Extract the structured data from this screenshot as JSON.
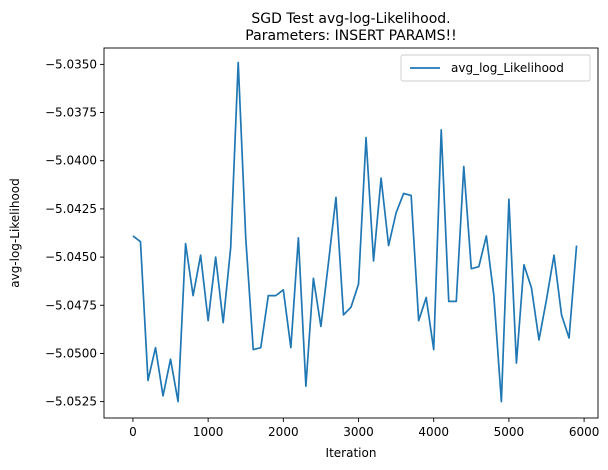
{
  "chart_data": {
    "type": "line",
    "title_line1": "SGD Test avg-log-Likelihood.",
    "title_line2": "Parameters: INSERT PARAMS!!",
    "xlabel": "Iteration",
    "ylabel": "avg-log-Likelihood",
    "xlim": [
      -385,
      6185
    ],
    "ylim": [
      -5.05335,
      -5.03415
    ],
    "x_ticks": [
      0,
      1000,
      2000,
      3000,
      4000,
      5000,
      6000
    ],
    "x_tick_labels": [
      "0",
      "1000",
      "2000",
      "3000",
      "4000",
      "5000",
      "6000"
    ],
    "y_ticks": [
      -5.0525,
      -5.05,
      -5.0475,
      -5.045,
      -5.0425,
      -5.04,
      -5.0375,
      -5.035
    ],
    "y_tick_labels": [
      "−5.0525",
      "−5.0500",
      "−5.0475",
      "−5.0450",
      "−5.0425",
      "−5.0400",
      "−5.0375",
      "−5.0350"
    ],
    "grid": false,
    "legend_position": "top-right",
    "series": [
      {
        "name": "avg_log_Likelihood",
        "color": "#1f77b4",
        "x": [
          0,
          100,
          200,
          300,
          400,
          500,
          600,
          700,
          800,
          900,
          1000,
          1100,
          1200,
          1300,
          1400,
          1500,
          1600,
          1700,
          1800,
          1900,
          2000,
          2100,
          2200,
          2300,
          2400,
          2500,
          2600,
          2700,
          2800,
          2900,
          3000,
          3100,
          3200,
          3300,
          3400,
          3500,
          3600,
          3700,
          3800,
          3900,
          4000,
          4100,
          4200,
          4300,
          4400,
          4500,
          4600,
          4700,
          4800,
          4900,
          5000,
          5100,
          5200,
          5300,
          5400,
          5500,
          5600,
          5700,
          5800,
          5900
        ],
        "y": [
          -5.0439,
          -5.0442,
          -5.0514,
          -5.0497,
          -5.0522,
          -5.0503,
          -5.0525,
          -5.0443,
          -5.047,
          -5.0449,
          -5.0483,
          -5.045,
          -5.0484,
          -5.0445,
          -5.0349,
          -5.044,
          -5.0498,
          -5.0497,
          -5.047,
          -5.047,
          -5.0467,
          -5.0497,
          -5.044,
          -5.0517,
          -5.0461,
          -5.0486,
          -5.0453,
          -5.0419,
          -5.048,
          -5.0476,
          -5.0464,
          -5.0388,
          -5.0452,
          -5.0409,
          -5.0444,
          -5.0427,
          -5.0417,
          -5.0418,
          -5.0483,
          -5.0471,
          -5.0498,
          -5.0384,
          -5.0473,
          -5.0473,
          -5.0403,
          -5.0456,
          -5.0455,
          -5.0439,
          -5.047,
          -5.0525,
          -5.042,
          -5.0505,
          -5.0454,
          -5.0466,
          -5.0493,
          -5.0472,
          -5.0449,
          -5.048,
          -5.0492,
          -5.0444
        ]
      }
    ]
  }
}
